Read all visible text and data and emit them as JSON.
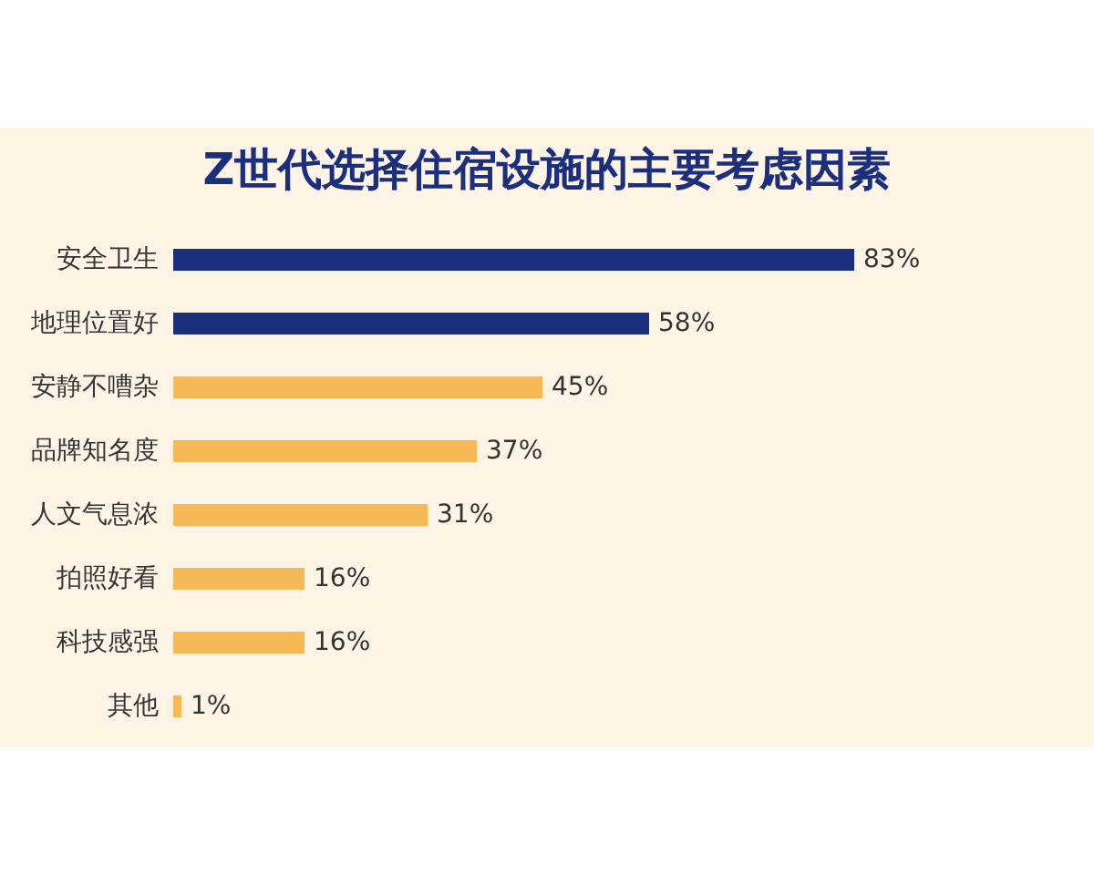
{
  "chart_data": {
    "type": "bar",
    "orientation": "horizontal",
    "title": "Z世代选择住宿设施的主要考虑因素",
    "categories": [
      "安全卫生",
      "地理位置好",
      "安静不嘈杂",
      "品牌知名度",
      "人文气息浓",
      "拍照好看",
      "科技感强",
      "其他"
    ],
    "values": [
      83,
      58,
      45,
      37,
      31,
      16,
      16,
      1
    ],
    "colors": [
      "#1b2f7c",
      "#1b2f7c",
      "#f6b955",
      "#f6b955",
      "#f6b955",
      "#f6b955",
      "#f6b955",
      "#f6b955"
    ],
    "value_labels": [
      "83%",
      "58%",
      "45%",
      "37%",
      "31%",
      "16%",
      "16%",
      "1%"
    ]
  }
}
